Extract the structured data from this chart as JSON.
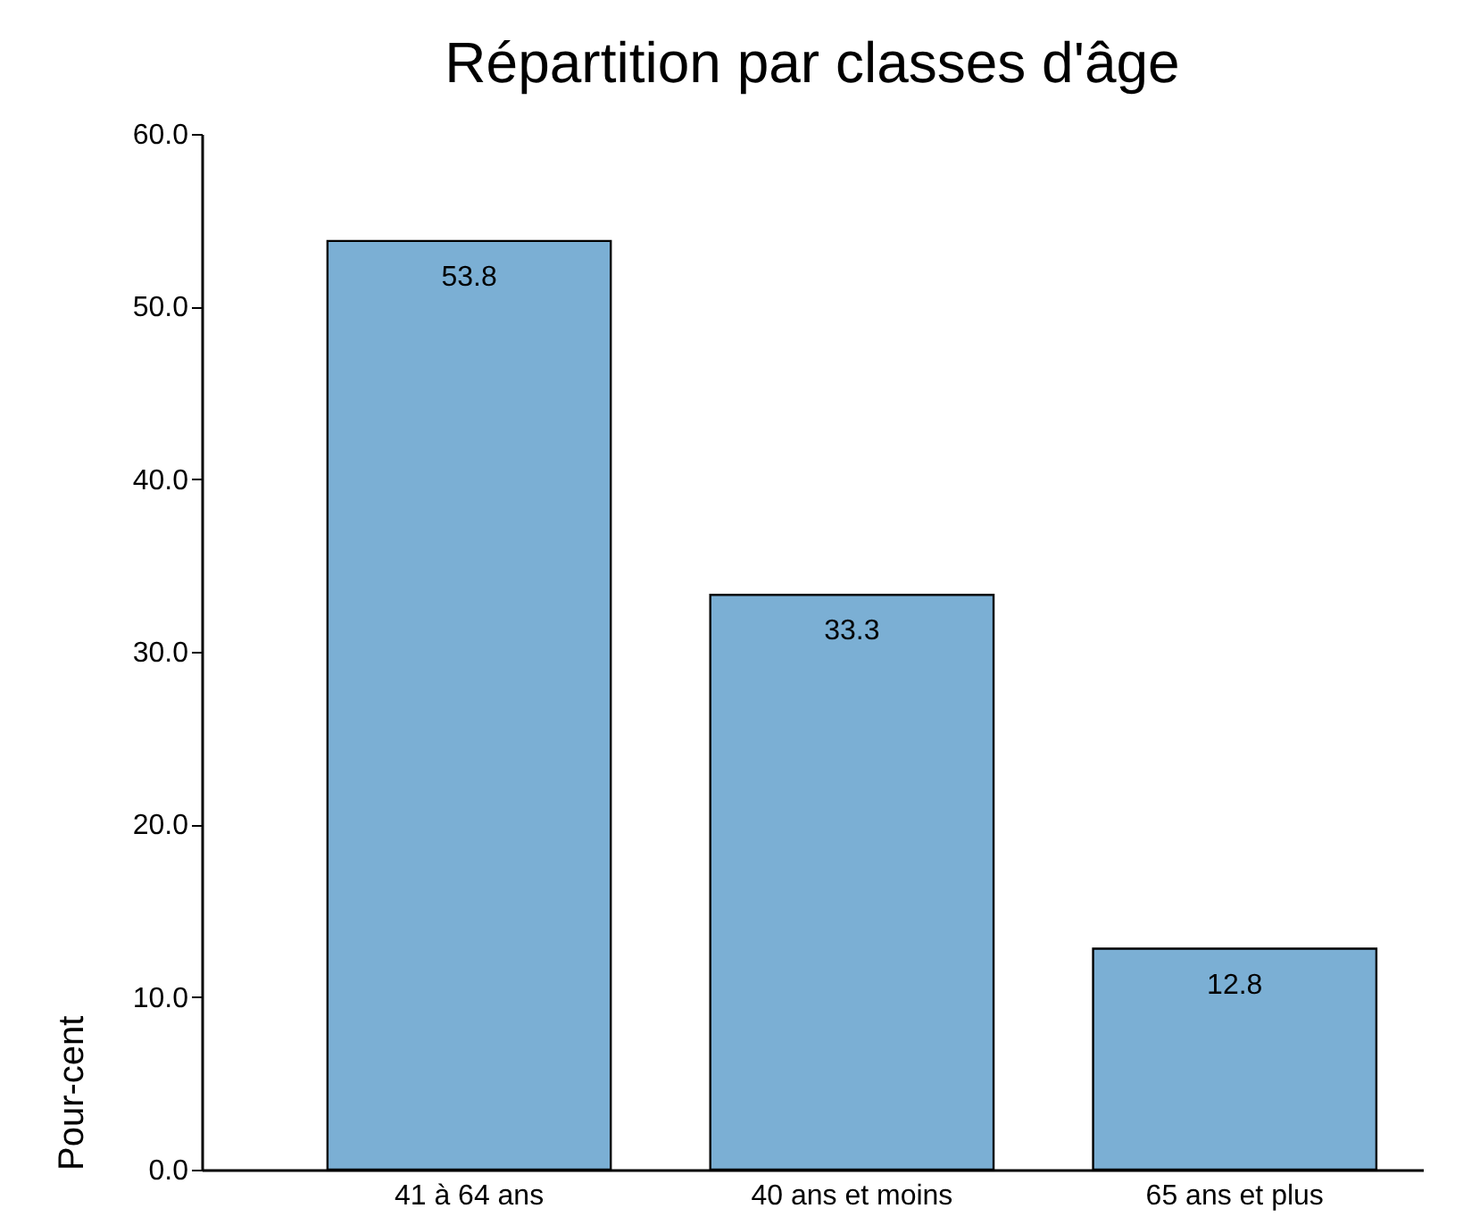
{
  "chart_data": {
    "type": "bar",
    "title": "Répartition par classes d'âge",
    "ylabel": "Pour-cent",
    "categories": [
      "41 à 64 ans",
      "40 ans et moins",
      "65 ans et plus"
    ],
    "values": [
      53.8,
      33.3,
      12.8
    ],
    "color": "#7bafd4",
    "data_labels": true,
    "grid": false,
    "ylim": [
      0,
      60
    ],
    "yticks": [
      {
        "value": 0,
        "label": "0.0"
      },
      {
        "value": 10,
        "label": "10.0"
      },
      {
        "value": 20,
        "label": "20.0"
      },
      {
        "value": 30,
        "label": "30.0"
      },
      {
        "value": 40,
        "label": "40.0"
      },
      {
        "value": 50,
        "label": "50.0"
      },
      {
        "value": 60,
        "label": "60.0"
      }
    ]
  }
}
